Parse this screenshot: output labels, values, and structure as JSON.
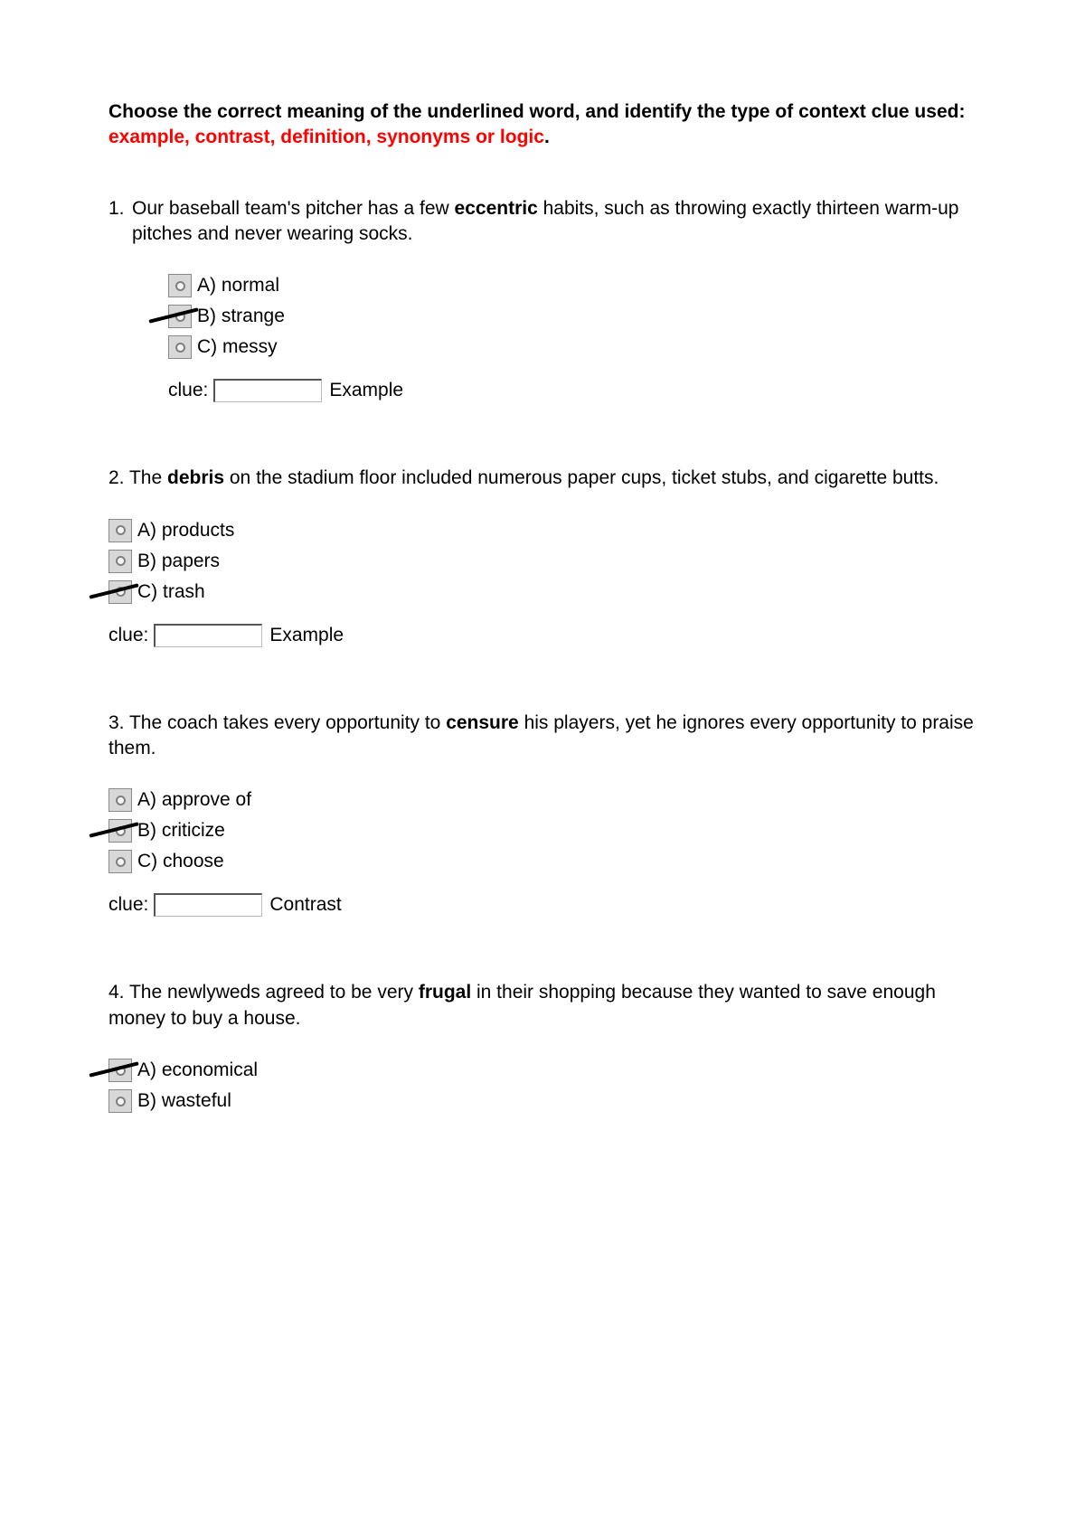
{
  "instructions": {
    "part1": "Choose the correct meaning of the underlined word, and identify the type of context clue used: ",
    "clue_types": "example, contrast, definition, synonyms or logic",
    "period": "."
  },
  "questions": [
    {
      "number": "1.",
      "text_before": "Our baseball team's pitcher has a few ",
      "bold_word": "eccentric",
      "text_after": " habits, such as throwing exactly thirteen warm-up pitches and never wearing socks.",
      "options": [
        {
          "label": "A) normal",
          "marked": false
        },
        {
          "label": "B) strange",
          "marked": true
        },
        {
          "label": "C) messy",
          "marked": false
        }
      ],
      "clue_label": "clue:",
      "clue_answer": "Example"
    },
    {
      "number": "2.",
      "text_before": "The ",
      "bold_word": "debris",
      "text_after": " on the stadium floor included numerous paper cups, ticket stubs, and cigarette butts.",
      "options": [
        {
          "label": "A) products",
          "marked": false
        },
        {
          "label": "B) papers",
          "marked": false
        },
        {
          "label": "C) trash",
          "marked": true
        }
      ],
      "clue_label": "clue:",
      "clue_answer": "Example"
    },
    {
      "number": "3.",
      "text_before": "The coach takes every opportunity to ",
      "bold_word": "censure",
      "text_after": " his players, yet he ignores every opportunity to praise them.",
      "options": [
        {
          "label": "A) approve of",
          "marked": false
        },
        {
          "label": "B) criticize",
          "marked": true
        },
        {
          "label": "C) choose",
          "marked": false
        }
      ],
      "clue_label": "clue:",
      "clue_answer": "Contrast"
    },
    {
      "number": "4.",
      "text_before": "The newlyweds agreed to be very ",
      "bold_word": "frugal",
      "text_after": " in their shopping because they wanted to save enough money to buy a house.",
      "options": [
        {
          "label": "A) economical",
          "marked": true
        },
        {
          "label": "B) wasteful",
          "marked": false
        }
      ],
      "clue_label": "",
      "clue_answer": ""
    }
  ]
}
